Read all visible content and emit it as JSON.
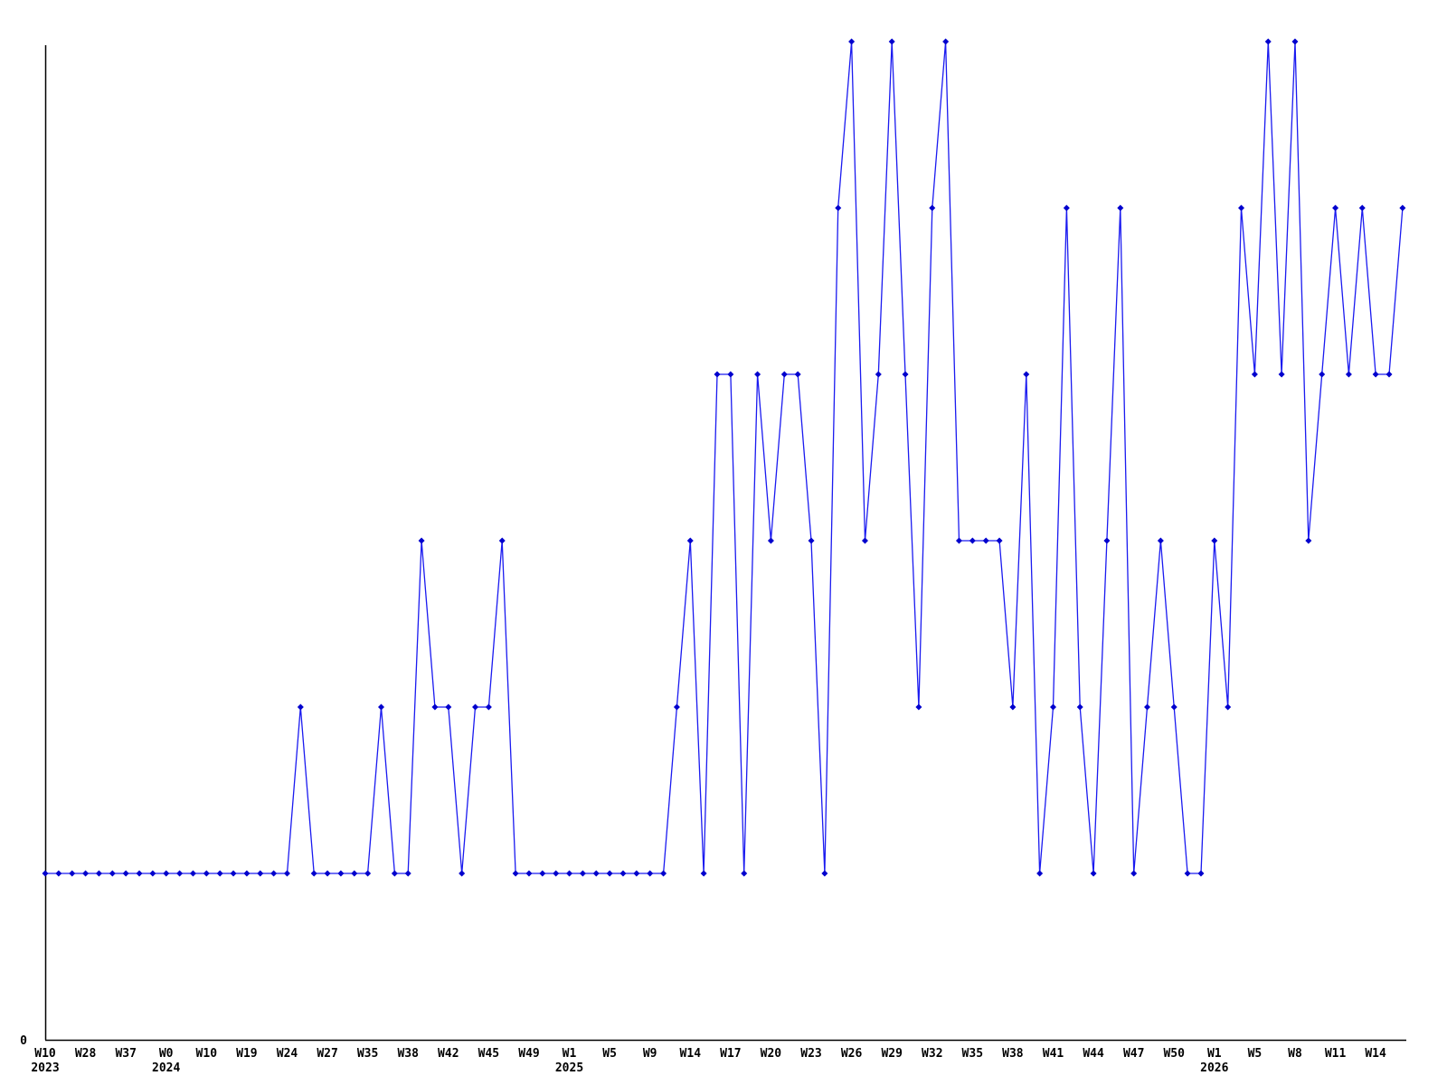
{
  "chart_data": {
    "type": "line",
    "title": "",
    "xlabel": "",
    "ylabel": "",
    "y_axis_labels": [
      "0"
    ],
    "ylim": [
      0,
      6.3
    ],
    "grid": false,
    "legend": null,
    "marker": "diamond",
    "line_color": "#1a1af0",
    "marker_color": "#0000cd",
    "axis_color": "#000000",
    "ticks_every_n_points": 3,
    "x_tick_labels": [
      "W10",
      "W28",
      "W37",
      "W0",
      "W10",
      "W19",
      "W24",
      "W27",
      "W35",
      "W38",
      "W42",
      "W45",
      "W49",
      "W1",
      "W5",
      "W9",
      "W14",
      "W17",
      "W20",
      "W23",
      "W26",
      "W29",
      "W32",
      "W35",
      "W38",
      "W41",
      "W44",
      "W47",
      "W50",
      "W1",
      "W5",
      "W8",
      "W11",
      "W14"
    ],
    "year_labels": [
      {
        "tick_index": 0,
        "label": "2023"
      },
      {
        "tick_index": 3,
        "label": "2024"
      },
      {
        "tick_index": 13,
        "label": "2025"
      },
      {
        "tick_index": 29,
        "label": "2026"
      }
    ],
    "values": [
      1,
      1,
      1,
      1,
      1,
      1,
      1,
      1,
      1,
      1,
      1,
      1,
      1,
      1,
      1,
      1,
      1,
      1,
      1,
      2,
      1,
      1,
      1,
      1,
      1,
      2,
      1,
      1,
      3,
      2,
      2,
      1,
      2,
      2,
      3,
      1,
      1,
      1,
      1,
      1,
      1,
      1,
      1,
      1,
      1,
      1,
      1,
      2,
      3,
      1,
      4,
      4,
      1,
      4,
      3,
      4,
      4,
      3,
      1,
      5,
      6,
      3,
      4,
      6,
      4,
      2,
      5,
      6,
      3,
      3,
      3,
      3,
      2,
      4,
      1,
      2,
      5,
      2,
      1,
      3,
      5,
      1,
      2,
      3,
      2,
      1,
      1,
      3,
      2,
      5,
      4,
      6,
      4,
      6,
      3,
      4,
      5,
      4,
      5,
      4,
      4,
      5
    ]
  }
}
